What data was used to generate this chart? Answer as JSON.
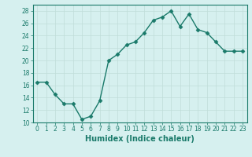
{
  "x": [
    0,
    1,
    2,
    3,
    4,
    5,
    6,
    7,
    8,
    9,
    10,
    11,
    12,
    13,
    14,
    15,
    16,
    17,
    18,
    19,
    20,
    21,
    22,
    23
  ],
  "y": [
    16.5,
    16.5,
    14.5,
    13.0,
    13.0,
    10.5,
    11.0,
    13.5,
    20.0,
    21.0,
    22.5,
    23.0,
    24.5,
    26.5,
    27.0,
    28.0,
    25.5,
    27.5,
    25.0,
    24.5,
    23.0,
    21.5,
    21.5,
    21.5
  ],
  "line_color": "#1a7a6a",
  "marker": "D",
  "marker_size": 2.5,
  "bg_color": "#d6f0ef",
  "grid_color": "#c0ddd9",
  "xlabel": "Humidex (Indice chaleur)",
  "ylim": [
    10,
    29
  ],
  "xlim": [
    -0.5,
    23.5
  ],
  "yticks": [
    10,
    12,
    14,
    16,
    18,
    20,
    22,
    24,
    26,
    28
  ],
  "xticks": [
    0,
    1,
    2,
    3,
    4,
    5,
    6,
    7,
    8,
    9,
    10,
    11,
    12,
    13,
    14,
    15,
    16,
    17,
    18,
    19,
    20,
    21,
    22,
    23
  ],
  "tick_label_size": 5.5,
  "xlabel_size": 7,
  "line_width": 1.0
}
